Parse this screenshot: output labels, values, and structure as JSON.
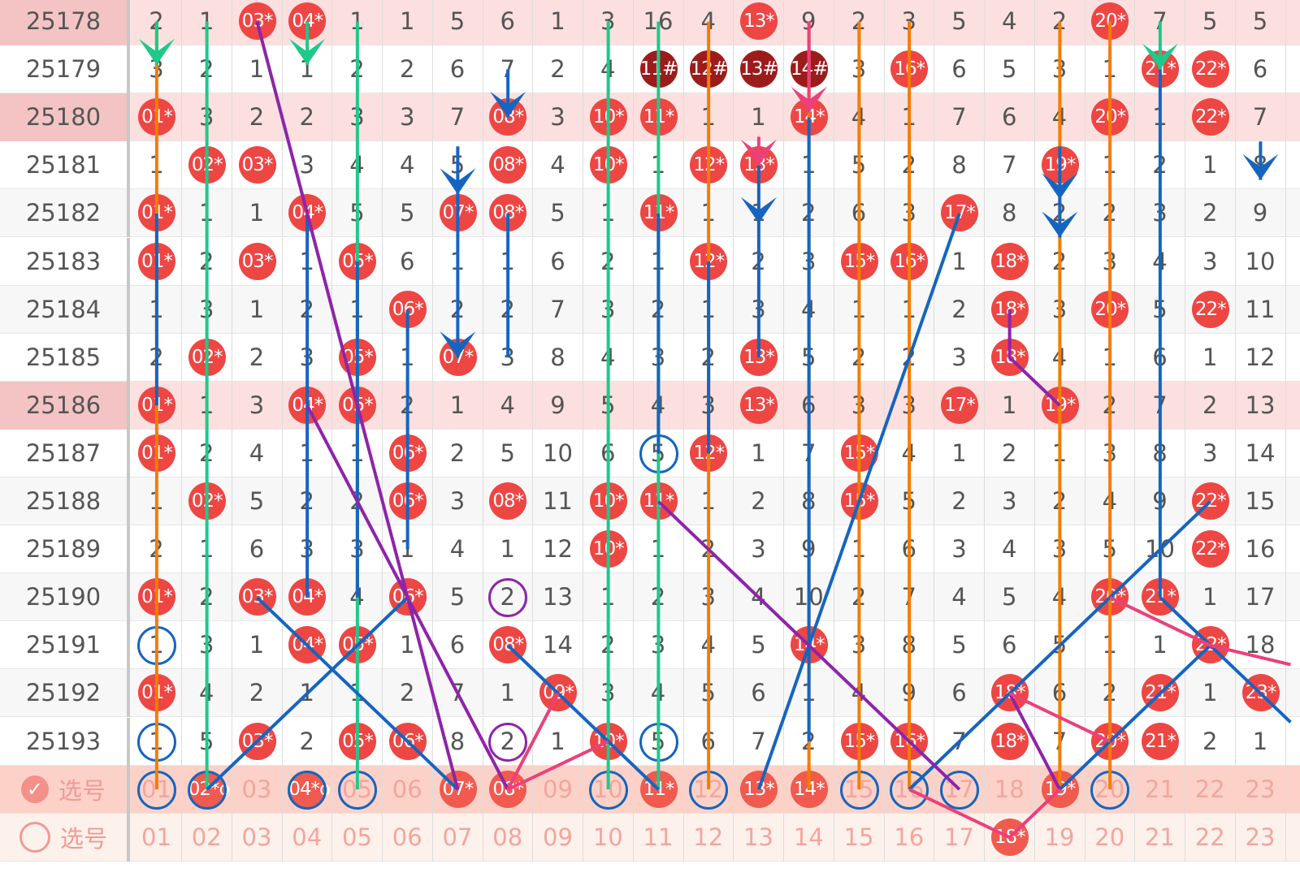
{
  "rows": [
    {
      "issue": "25178",
      "hl": true,
      "cells": [
        "2",
        "1",
        "03*",
        "04*",
        "1",
        "1",
        "5",
        "6",
        "1",
        "3",
        "16",
        "4",
        "13*",
        "9",
        "2",
        "3",
        "5",
        "4",
        "2",
        "20*",
        "7",
        "5",
        "5"
      ]
    },
    {
      "issue": "25179",
      "cells": [
        "3",
        "2",
        "1",
        "1",
        "2",
        "2",
        "6",
        "7",
        "2",
        "4",
        "11#",
        "12#",
        "13#",
        "14#",
        "3",
        "16*",
        "6",
        "5",
        "3",
        "1",
        "21*",
        "22*",
        "6"
      ]
    },
    {
      "issue": "25180",
      "hl": true,
      "cells": [
        "01*",
        "3",
        "2",
        "2",
        "3",
        "3",
        "7",
        "08*",
        "3",
        "10*",
        "11*",
        "1",
        "1",
        "14*",
        "4",
        "1",
        "7",
        "6",
        "4",
        "20*",
        "1",
        "22*",
        "7"
      ]
    },
    {
      "issue": "25181",
      "cells": [
        "1",
        "02*",
        "03*",
        "3",
        "4",
        "4",
        "5",
        "08*",
        "4",
        "10*",
        "1",
        "12*",
        "13*",
        "1",
        "5",
        "2",
        "8",
        "7",
        "19*",
        "1",
        "2",
        "1",
        "8"
      ]
    },
    {
      "issue": "25182",
      "cells": [
        "01*",
        "1",
        "1",
        "04*",
        "5",
        "5",
        "07*",
        "08*",
        "5",
        "1",
        "11*",
        "1",
        "1",
        "2",
        "6",
        "3",
        "17*",
        "8",
        "2",
        "2",
        "3",
        "2",
        "9"
      ]
    },
    {
      "issue": "25183",
      "cells": [
        "01*",
        "2",
        "03*",
        "1",
        "05*",
        "6",
        "1",
        "1",
        "6",
        "2",
        "1",
        "12*",
        "2",
        "3",
        "15*",
        "16*",
        "1",
        "18*",
        "2",
        "3",
        "4",
        "3",
        "10"
      ]
    },
    {
      "issue": "25184",
      "cells": [
        "1",
        "3",
        "1",
        "2",
        "1",
        "06*",
        "2",
        "2",
        "7",
        "3",
        "2",
        "1",
        "3",
        "4",
        "1",
        "1",
        "2",
        "18*",
        "3",
        "20*",
        "5",
        "22*",
        "11"
      ]
    },
    {
      "issue": "25185",
      "cells": [
        "2",
        "02*",
        "2",
        "3",
        "05*",
        "1",
        "07*",
        "3",
        "8",
        "4",
        "3",
        "2",
        "13*",
        "5",
        "2",
        "2",
        "3",
        "18*",
        "4",
        "1",
        "6",
        "1",
        "12"
      ]
    },
    {
      "issue": "25186",
      "hl": true,
      "cells": [
        "01*",
        "1",
        "3",
        "04*",
        "05*",
        "2",
        "1",
        "4",
        "9",
        "5",
        "4",
        "3",
        "13*",
        "6",
        "3",
        "3",
        "17*",
        "1",
        "19*",
        "2",
        "7",
        "2",
        "13"
      ]
    },
    {
      "issue": "25187",
      "cells": [
        "01*",
        "2",
        "4",
        "1",
        "1",
        "06*",
        "2",
        "5",
        "10",
        "6",
        "5o",
        "12*",
        "1",
        "7",
        "15*",
        "4",
        "1",
        "2",
        "1",
        "3",
        "8",
        "3",
        "14"
      ]
    },
    {
      "issue": "25188",
      "cells": [
        "1",
        "02*",
        "5",
        "2",
        "2",
        "06*",
        "3",
        "08*",
        "11",
        "10*",
        "11*",
        "1",
        "2",
        "8",
        "15*",
        "5",
        "2",
        "3",
        "2",
        "4",
        "9",
        "22*",
        "15"
      ]
    },
    {
      "issue": "25189",
      "cells": [
        "2",
        "1",
        "6",
        "3",
        "3",
        "1",
        "4",
        "1",
        "12",
        "10*",
        "1",
        "2",
        "3",
        "9",
        "1",
        "6",
        "3",
        "4",
        "3",
        "5",
        "10",
        "22*",
        "16"
      ]
    },
    {
      "issue": "25190",
      "cells": [
        "01*",
        "2",
        "03*",
        "04*",
        "4",
        "06*",
        "5",
        "2p",
        "13",
        "1",
        "2",
        "3",
        "4",
        "10",
        "2",
        "7",
        "4",
        "5",
        "4",
        "20*",
        "21*",
        "1",
        "17"
      ]
    },
    {
      "issue": "25191",
      "cells": [
        "1o",
        "3",
        "1",
        "04*",
        "05*",
        "1",
        "6",
        "08*",
        "14",
        "2",
        "3",
        "4",
        "5",
        "14*",
        "3",
        "8",
        "5",
        "6",
        "5",
        "1",
        "1",
        "22*",
        "18"
      ]
    },
    {
      "issue": "25192",
      "cells": [
        "01*",
        "4",
        "2",
        "1",
        "1",
        "2",
        "7",
        "1",
        "09*",
        "3",
        "4",
        "5",
        "6",
        "1",
        "4",
        "9",
        "6",
        "18*",
        "6",
        "2",
        "21*",
        "1",
        "23*"
      ]
    },
    {
      "issue": "25193",
      "cells": [
        "1o",
        "5",
        "03*",
        "2",
        "05*",
        "06*",
        "8",
        "2p",
        "1",
        "10*",
        "5o",
        "6",
        "7",
        "2",
        "15*",
        "16*",
        "7",
        "18*",
        "7",
        "20*",
        "21*",
        "2",
        "1"
      ]
    }
  ],
  "pick_row": {
    "label": "选号",
    "checked": true,
    "cells": [
      "01o",
      "02*o",
      "03",
      "04*o",
      "05o",
      "06",
      "07*",
      "08*",
      "09",
      "10o",
      "11*",
      "12o",
      "13*",
      "14*",
      "15o",
      "16o",
      "17o",
      "18",
      "19*",
      "20o",
      "21",
      "22",
      "23"
    ]
  },
  "bottom_row": {
    "label": "选号",
    "checked": false,
    "cells": [
      "01",
      "02",
      "03",
      "04",
      "05",
      "06",
      "07",
      "08",
      "09",
      "10",
      "11",
      "12",
      "13",
      "14",
      "15",
      "16",
      "17",
      "18*",
      "19",
      "20",
      "21",
      "22",
      "23"
    ]
  },
  "colors": {
    "ball": "#ee4643",
    "ball_dark": "#9c1c1c",
    "orange": "#f57c00",
    "green": "#1ec98a",
    "blue": "#1565c0",
    "purple": "#8e24aa",
    "pink": "#ec407a"
  }
}
